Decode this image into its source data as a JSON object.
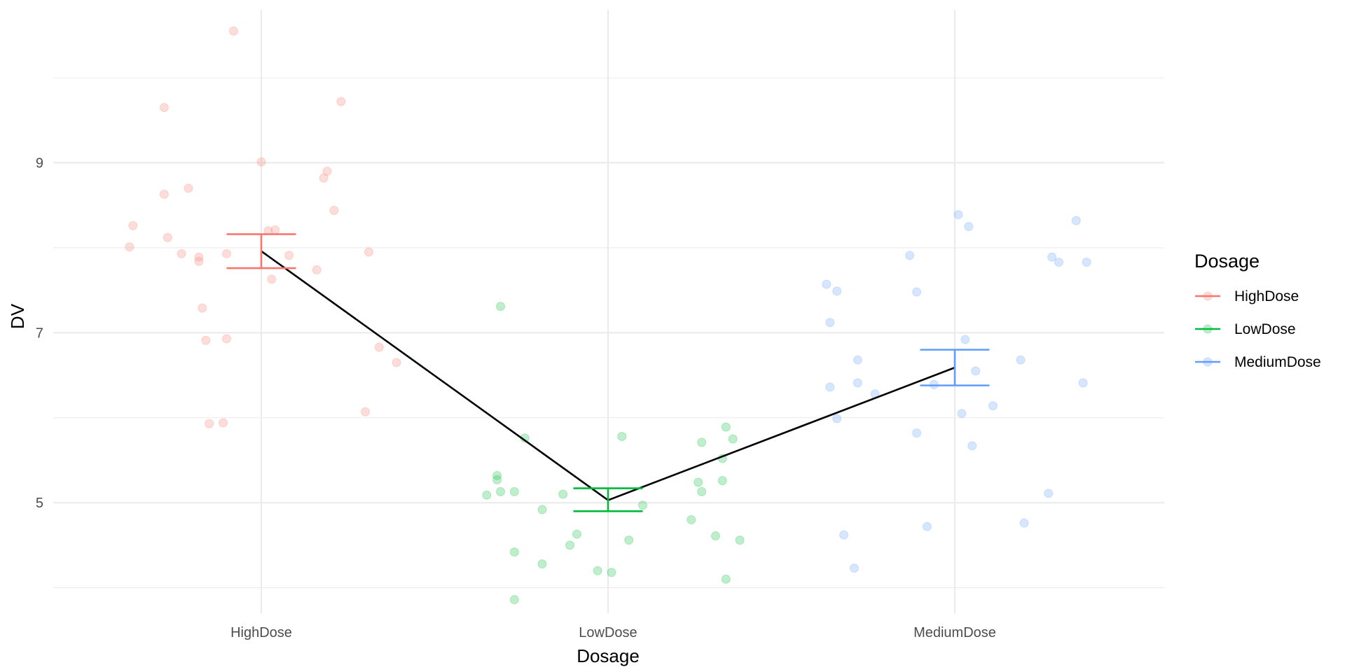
{
  "chart_data": {
    "type": "scatter",
    "title": "",
    "xlabel": "Dosage",
    "ylabel": "DV",
    "categories": [
      "HighDose",
      "LowDose",
      "MediumDose"
    ],
    "ylim": [
      3.7,
      10.8
    ],
    "yticks": [
      5,
      7,
      9
    ],
    "grid": true,
    "legend": {
      "title": "Dosage",
      "placement": "right",
      "entries": [
        "HighDose",
        "LowDose",
        "MediumDose"
      ]
    },
    "colors": {
      "HighDose": "#F8766D",
      "LowDose": "#00BA38",
      "MediumDose": "#619CFF",
      "mean_line": "#000000"
    },
    "mean_line": [
      {
        "category": "HighDose",
        "mean": 7.96
      },
      {
        "category": "LowDose",
        "mean": 5.03
      },
      {
        "category": "MediumDose",
        "mean": 6.59
      }
    ],
    "error_bars": [
      {
        "category": "HighDose",
        "low": 7.76,
        "high": 8.16
      },
      {
        "category": "LowDose",
        "low": 4.9,
        "high": 5.17
      },
      {
        "category": "MediumDose",
        "low": 6.38,
        "high": 6.8
      }
    ],
    "series": [
      {
        "name": "HighDose",
        "points": [
          {
            "x": -0.38,
            "y": 8.01
          },
          {
            "x": -0.37,
            "y": 8.26
          },
          {
            "x": -0.28,
            "y": 9.65
          },
          {
            "x": -0.28,
            "y": 8.63
          },
          {
            "x": -0.27,
            "y": 8.12
          },
          {
            "x": -0.23,
            "y": 7.93
          },
          {
            "x": -0.21,
            "y": 8.7
          },
          {
            "x": -0.18,
            "y": 7.89
          },
          {
            "x": -0.18,
            "y": 7.84
          },
          {
            "x": -0.17,
            "y": 7.29
          },
          {
            "x": -0.16,
            "y": 6.91
          },
          {
            "x": -0.15,
            "y": 5.93
          },
          {
            "x": -0.11,
            "y": 5.94
          },
          {
            "x": -0.1,
            "y": 7.93
          },
          {
            "x": -0.1,
            "y": 6.93
          },
          {
            "x": -0.08,
            "y": 10.55
          },
          {
            "x": 0.0,
            "y": 9.01
          },
          {
            "x": 0.02,
            "y": 8.2
          },
          {
            "x": 0.03,
            "y": 7.63
          },
          {
            "x": 0.04,
            "y": 8.21
          },
          {
            "x": 0.08,
            "y": 7.91
          },
          {
            "x": 0.16,
            "y": 7.74
          },
          {
            "x": 0.18,
            "y": 8.82
          },
          {
            "x": 0.19,
            "y": 8.9
          },
          {
            "x": 0.21,
            "y": 8.44
          },
          {
            "x": 0.23,
            "y": 9.72
          },
          {
            "x": 0.3,
            "y": 6.07
          },
          {
            "x": 0.31,
            "y": 7.95
          },
          {
            "x": 0.34,
            "y": 6.83
          },
          {
            "x": 0.39,
            "y": 6.65
          }
        ]
      },
      {
        "name": "LowDose",
        "points": [
          {
            "x": -0.35,
            "y": 5.09
          },
          {
            "x": -0.32,
            "y": 5.27
          },
          {
            "x": -0.32,
            "y": 5.32
          },
          {
            "x": -0.31,
            "y": 5.13
          },
          {
            "x": -0.31,
            "y": 7.31
          },
          {
            "x": -0.27,
            "y": 5.13
          },
          {
            "x": -0.27,
            "y": 4.42
          },
          {
            "x": -0.27,
            "y": 3.86
          },
          {
            "x": -0.24,
            "y": 5.76
          },
          {
            "x": -0.19,
            "y": 4.92
          },
          {
            "x": -0.19,
            "y": 4.28
          },
          {
            "x": -0.13,
            "y": 5.1
          },
          {
            "x": -0.11,
            "y": 4.5
          },
          {
            "x": -0.09,
            "y": 4.63
          },
          {
            "x": -0.03,
            "y": 4.2
          },
          {
            "x": 0.01,
            "y": 4.18
          },
          {
            "x": 0.04,
            "y": 5.78
          },
          {
            "x": 0.06,
            "y": 4.56
          },
          {
            "x": 0.1,
            "y": 4.97
          },
          {
            "x": 0.24,
            "y": 4.8
          },
          {
            "x": 0.26,
            "y": 5.24
          },
          {
            "x": 0.27,
            "y": 5.71
          },
          {
            "x": 0.27,
            "y": 5.13
          },
          {
            "x": 0.31,
            "y": 4.61
          },
          {
            "x": 0.33,
            "y": 5.26
          },
          {
            "x": 0.34,
            "y": 4.1
          },
          {
            "x": 0.34,
            "y": 5.89
          },
          {
            "x": 0.36,
            "y": 5.75
          },
          {
            "x": 0.38,
            "y": 4.56
          },
          {
            "x": 0.33,
            "y": 5.52
          }
        ]
      },
      {
        "name": "MediumDose",
        "points": [
          {
            "x": -0.37,
            "y": 7.57
          },
          {
            "x": -0.36,
            "y": 7.12
          },
          {
            "x": -0.36,
            "y": 6.36
          },
          {
            "x": -0.34,
            "y": 7.49
          },
          {
            "x": -0.34,
            "y": 5.99
          },
          {
            "x": -0.32,
            "y": 4.62
          },
          {
            "x": -0.29,
            "y": 4.23
          },
          {
            "x": -0.28,
            "y": 6.41
          },
          {
            "x": -0.28,
            "y": 6.68
          },
          {
            "x": -0.23,
            "y": 6.28
          },
          {
            "x": -0.13,
            "y": 7.91
          },
          {
            "x": -0.11,
            "y": 5.82
          },
          {
            "x": -0.11,
            "y": 7.48
          },
          {
            "x": -0.08,
            "y": 4.72
          },
          {
            "x": -0.06,
            "y": 6.39
          },
          {
            "x": 0.01,
            "y": 8.39
          },
          {
            "x": 0.02,
            "y": 6.05
          },
          {
            "x": 0.03,
            "y": 6.92
          },
          {
            "x": 0.04,
            "y": 8.25
          },
          {
            "x": 0.05,
            "y": 5.67
          },
          {
            "x": 0.06,
            "y": 6.55
          },
          {
            "x": 0.11,
            "y": 6.14
          },
          {
            "x": 0.19,
            "y": 6.68
          },
          {
            "x": 0.2,
            "y": 4.76
          },
          {
            "x": 0.27,
            "y": 5.11
          },
          {
            "x": 0.28,
            "y": 7.89
          },
          {
            "x": 0.3,
            "y": 7.83
          },
          {
            "x": 0.35,
            "y": 8.32
          },
          {
            "x": 0.37,
            "y": 6.41
          },
          {
            "x": 0.38,
            "y": 7.83
          }
        ]
      }
    ]
  }
}
